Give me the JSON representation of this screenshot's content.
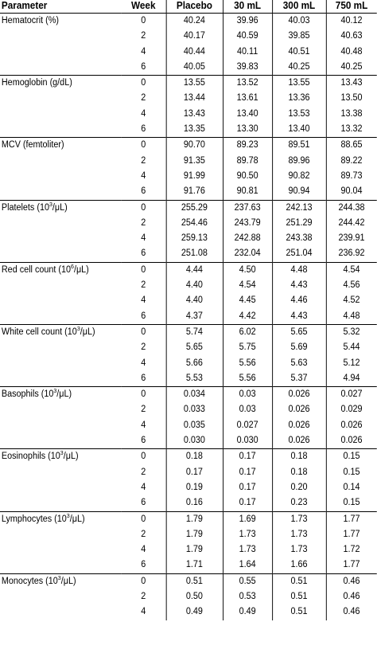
{
  "headers": {
    "parameter": "Parameter",
    "week": "Week",
    "placebo": "Placebo",
    "ml30": "30 mL",
    "ml300": "300 mL",
    "ml750": "750 mL"
  },
  "groups": [
    {
      "label": "Hematocrit (%)",
      "base": "",
      "exp": "",
      "rest": "",
      "rows": [
        [
          "0",
          "40.24",
          "39.96",
          "40.03",
          "40.12"
        ],
        [
          "2",
          "40.17",
          "40.59",
          "39.85",
          "40.63"
        ],
        [
          "4",
          "40.44",
          "40.11",
          "40.51",
          "40.48"
        ],
        [
          "6",
          "40.05",
          "39.83",
          "40.25",
          "40.25"
        ]
      ]
    },
    {
      "label": "Hemoglobin (g/dL)",
      "base": "",
      "exp": "",
      "rest": "",
      "rows": [
        [
          "0",
          "13.55",
          "13.52",
          "13.55",
          "13.43"
        ],
        [
          "2",
          "13.44",
          "13.61",
          "13.36",
          "13.50"
        ],
        [
          "4",
          "13.43",
          "13.40",
          "13.53",
          "13.38"
        ],
        [
          "6",
          "13.35",
          "13.30",
          "13.40",
          "13.32"
        ]
      ]
    },
    {
      "label": "MCV (femtoliter)",
      "base": "",
      "exp": "",
      "rest": "",
      "rows": [
        [
          "0",
          "90.70",
          "89.23",
          "89.51",
          "88.65"
        ],
        [
          "2",
          "91.35",
          "89.78",
          "89.96",
          "89.22"
        ],
        [
          "4",
          "91.99",
          "90.50",
          "90.82",
          "89.73"
        ],
        [
          "6",
          "91.76",
          "90.81",
          "90.94",
          "90.04"
        ]
      ]
    },
    {
      "label": "",
      "base": "Platelets (10",
      "exp": "3",
      "rest": "/μL)",
      "rows": [
        [
          "0",
          "255.29",
          "237.63",
          "242.13",
          "244.38"
        ],
        [
          "2",
          "254.46",
          "243.79",
          "251.29",
          "244.42"
        ],
        [
          "4",
          "259.13",
          "242.88",
          "243.38",
          "239.91"
        ],
        [
          "6",
          "251.08",
          "232.04",
          "251.04",
          "236.92"
        ]
      ]
    },
    {
      "label": "",
      "base": "Red cell count (10",
      "exp": "6",
      "rest": "/μL)",
      "rows": [
        [
          "0",
          "4.44",
          "4.50",
          "4.48",
          "4.54"
        ],
        [
          "2",
          "4.40",
          "4.54",
          "4.43",
          "4.56"
        ],
        [
          "4",
          "4.40",
          "4.45",
          "4.46",
          "4.52"
        ],
        [
          "6",
          "4.37",
          "4.42",
          "4.43",
          "4.48"
        ]
      ]
    },
    {
      "label": "",
      "base": "White cell count (10",
      "exp": "3",
      "rest": "/μL)",
      "rows": [
        [
          "0",
          "5.74",
          "6.02",
          "5.65",
          "5.32"
        ],
        [
          "2",
          "5.65",
          "5.75",
          "5.69",
          "5.44"
        ],
        [
          "4",
          "5.66",
          "5.56",
          "5.63",
          "5.12"
        ],
        [
          "6",
          "5.53",
          "5.56",
          "5.37",
          "4.94"
        ]
      ]
    },
    {
      "label": "",
      "base": "Basophils (10",
      "exp": "3",
      "rest": "/μL)",
      "rows": [
        [
          "0",
          "0.034",
          "0.03",
          "0.026",
          "0.027"
        ],
        [
          "2",
          "0.033",
          "0.03",
          "0.026",
          "0.029"
        ],
        [
          "4",
          "0.035",
          "0.027",
          "0.026",
          "0.026"
        ],
        [
          "6",
          "0.030",
          "0.030",
          "0.026",
          "0.026"
        ]
      ]
    },
    {
      "label": "",
      "base": "Eosinophils (10",
      "exp": "3",
      "rest": "/μL)",
      "rows": [
        [
          "0",
          "0.18",
          "0.17",
          "0.18",
          "0.15"
        ],
        [
          "2",
          "0.17",
          "0.17",
          "0.18",
          "0.15"
        ],
        [
          "4",
          "0.19",
          "0.17",
          "0.20",
          "0.14"
        ],
        [
          "6",
          "0.16",
          "0.17",
          "0.23",
          "0.15"
        ]
      ]
    },
    {
      "label": "",
      "base": "Lymphocytes (10",
      "exp": "3",
      "rest": "/μL)",
      "rows": [
        [
          "0",
          "1.79",
          "1.69",
          "1.73",
          "1.77"
        ],
        [
          "2",
          "1.79",
          "1.73",
          "1.73",
          "1.77"
        ],
        [
          "4",
          "1.79",
          "1.73",
          "1.73",
          "1.72"
        ],
        [
          "6",
          "1.71",
          "1.64",
          "1.66",
          "1.77"
        ]
      ]
    },
    {
      "label": "",
      "base": "Monocytes (10",
      "exp": "3",
      "rest": "/μL)",
      "rows": [
        [
          "0",
          "0.51",
          "0.55",
          "0.51",
          "0.46"
        ],
        [
          "2",
          "0.50",
          "0.53",
          "0.51",
          "0.46"
        ],
        [
          "4",
          "0.49",
          "0.49",
          "0.51",
          "0.46"
        ]
      ]
    }
  ]
}
